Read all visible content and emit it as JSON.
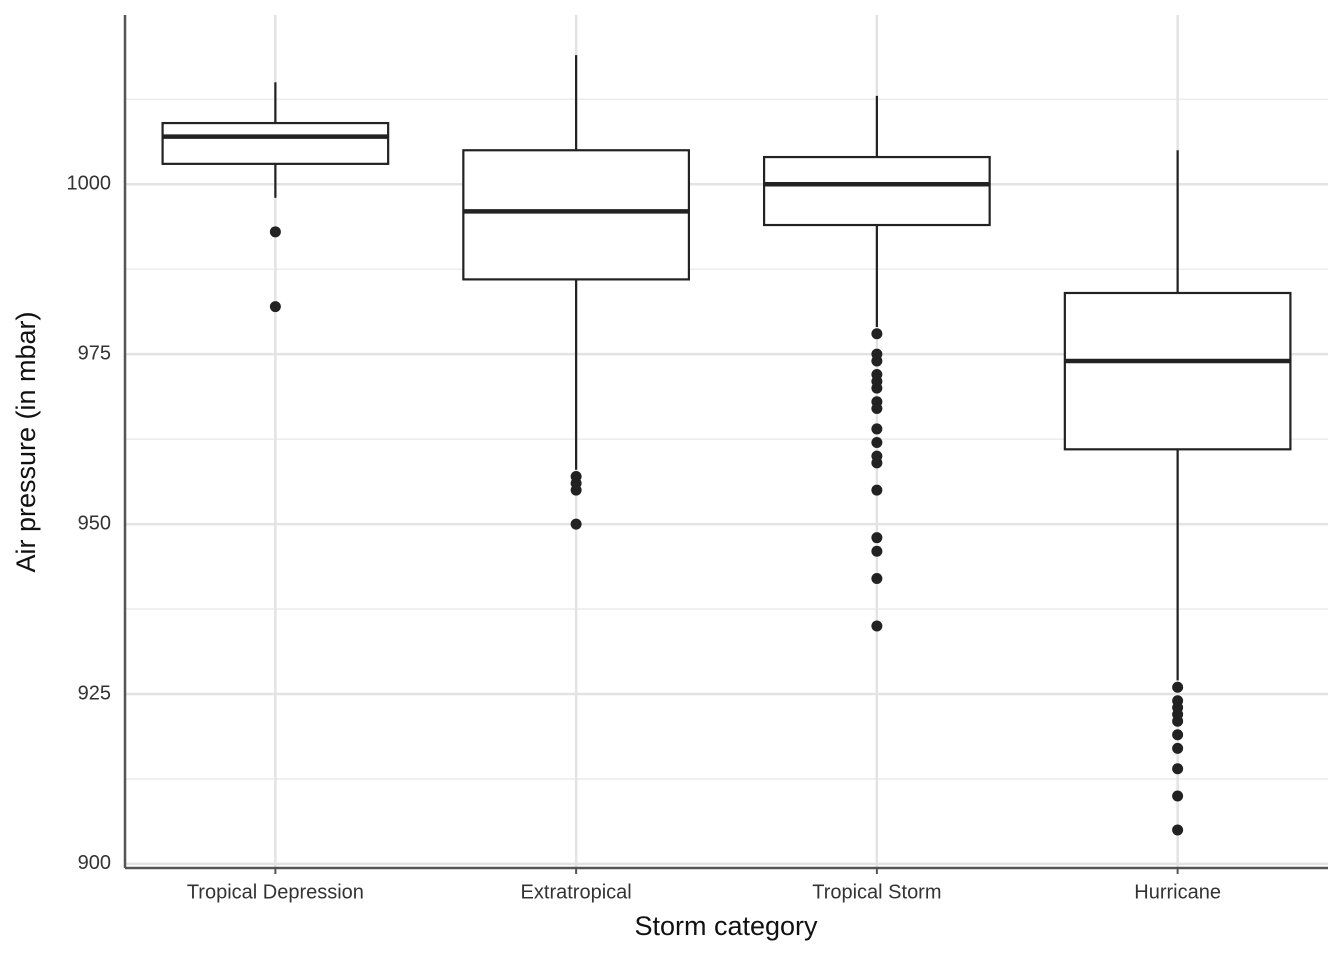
{
  "chart_data": {
    "type": "box",
    "x_label": "Storm category",
    "y_label": "Air pressure (in mbar)",
    "categories": [
      "Tropical Depression",
      "Extratropical",
      "Tropical Storm",
      "Hurricane"
    ],
    "boxes": [
      {
        "whisker_low": 998,
        "q1": 1003,
        "median": 1007,
        "q3": 1009,
        "whisker_high": 1015,
        "outliers": [
          993,
          982
        ]
      },
      {
        "whisker_low": 958,
        "q1": 986,
        "median": 996,
        "q3": 1005,
        "whisker_high": 1019,
        "outliers": [
          957,
          956,
          955,
          950
        ]
      },
      {
        "whisker_low": 979,
        "q1": 994,
        "median": 1000,
        "q3": 1004,
        "whisker_high": 1013,
        "outliers": [
          978,
          975,
          974,
          972,
          971,
          970,
          968,
          967,
          964,
          962,
          960,
          959,
          955,
          948,
          946,
          942,
          935
        ]
      },
      {
        "whisker_low": 927,
        "q1": 961,
        "median": 974,
        "q3": 984,
        "whisker_high": 1005,
        "outliers": [
          926,
          924,
          923,
          922,
          921,
          919,
          917,
          914,
          910,
          905
        ]
      }
    ],
    "color": "#222222",
    "ylim": [
      899.4,
      1024.9
    ],
    "yticks": [
      900,
      925,
      950,
      975,
      1000
    ],
    "minor_yticks": [
      912.5,
      937.5,
      962.5,
      987.5,
      1012.5
    ],
    "grid": true
  }
}
